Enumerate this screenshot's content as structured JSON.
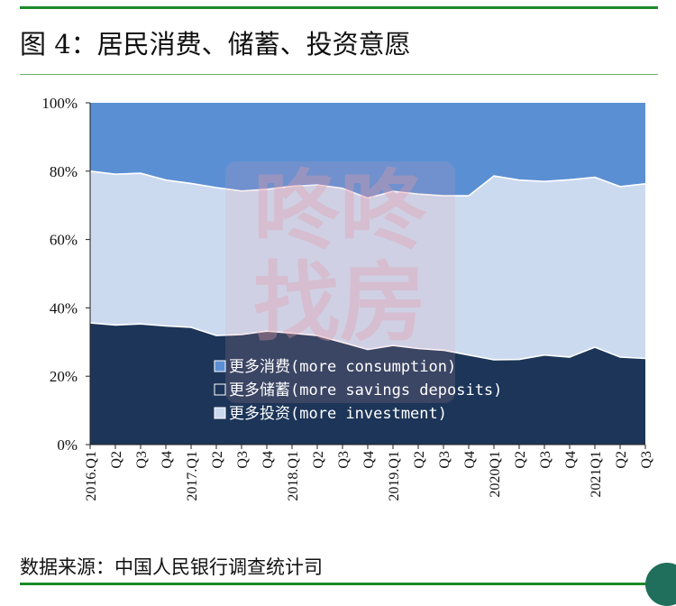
{
  "figure": {
    "title": "图 4：居民消费、储蓄、投资意愿",
    "source": "数据来源：中国人民银行调查统计司"
  },
  "watermark": {
    "lines": [
      "咚咚",
      "找房"
    ],
    "color": "#e39aa8"
  },
  "colors": {
    "consumption": "#5b8fd4",
    "savings": "#1c3558",
    "investment": "#ccdaf0",
    "brand_green": "#1a8a2a"
  },
  "chart_data": {
    "type": "area",
    "stacked": true,
    "x": [
      "2016.Q1",
      "Q2",
      "Q3",
      "Q4",
      "2017.Q1",
      "Q2",
      "Q3",
      "Q4",
      "2018.Q1",
      "Q2",
      "Q3",
      "Q4",
      "2019.Q1",
      "Q2",
      "Q3",
      "Q4",
      "2020Q1",
      "Q2",
      "Q3",
      "Q4",
      "2021Q1",
      "Q2",
      "Q3"
    ],
    "series": [
      {
        "name": "更多储蓄(more savings deposits)",
        "key": "savings",
        "values": [
          35.6,
          35.0,
          35.3,
          34.7,
          34.3,
          31.9,
          32.2,
          33.2,
          32.6,
          31.9,
          29.9,
          27.8,
          29.0,
          28.1,
          27.6,
          26.2,
          24.8,
          24.9,
          26.2,
          25.6,
          28.5,
          25.6,
          25.2
        ]
      },
      {
        "name": "更多投资(more investment)",
        "key": "investment",
        "values": [
          44.4,
          44.1,
          44.1,
          42.7,
          42.1,
          43.3,
          42.0,
          41.5,
          43.0,
          44.1,
          45.1,
          44.3,
          45.1,
          45.2,
          45.2,
          46.6,
          53.8,
          52.5,
          50.8,
          51.9,
          49.7,
          49.9,
          51.1
        ]
      },
      {
        "name": "更多消费(more consumption)",
        "key": "consumption",
        "values": [
          20.0,
          20.9,
          20.6,
          22.6,
          23.6,
          24.8,
          25.8,
          25.3,
          24.4,
          24.0,
          25.0,
          27.9,
          25.9,
          26.7,
          27.2,
          27.2,
          21.4,
          22.6,
          23.0,
          22.5,
          21.8,
          24.5,
          23.7
        ]
      }
    ],
    "legend": [
      {
        "label": "更多消费(more consumption)",
        "key": "consumption"
      },
      {
        "label": "更多储蓄(more savings deposits)",
        "key": "savings"
      },
      {
        "label": "更多投资(more investment)",
        "key": "investment"
      }
    ],
    "legend_placement": "lower-center inside plot",
    "y_ticks": [
      "0%",
      "20%",
      "40%",
      "60%",
      "80%",
      "100%"
    ],
    "ylim": [
      0,
      100
    ],
    "grid": false
  }
}
